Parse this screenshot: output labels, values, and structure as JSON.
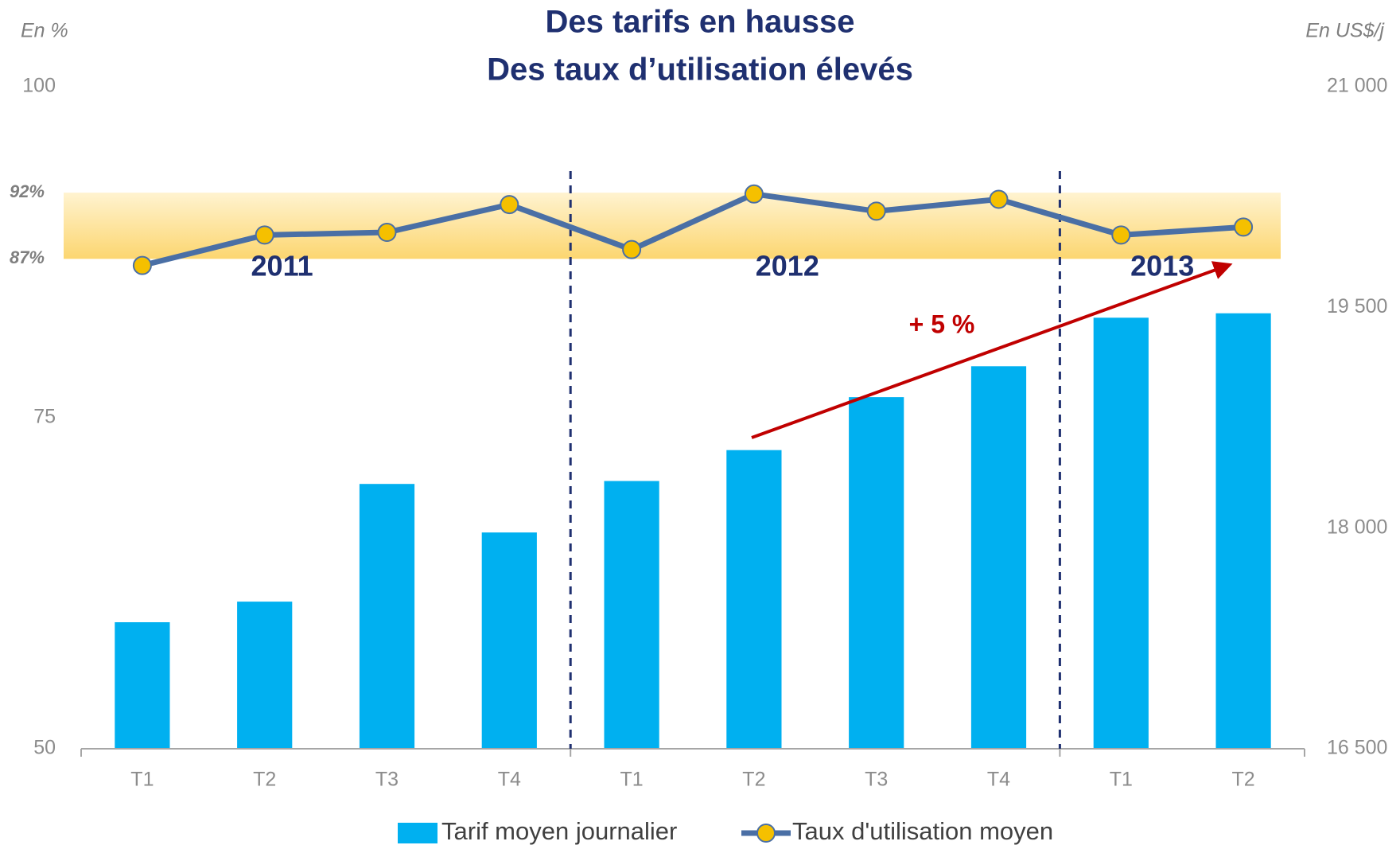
{
  "chart_data": {
    "type": "bar_line",
    "title": [
      "Des tarifs en hausse",
      "Des taux d’utilisation élevés"
    ],
    "y_axis_label": "En %",
    "y2_axis_label": "En US$/j",
    "categories": [
      "T1",
      "T2",
      "T3",
      "T4",
      "T1",
      "T2",
      "T3",
      "T4",
      "T1",
      "T2"
    ],
    "groups": [
      "2011",
      "2012",
      "2013"
    ],
    "series": [
      {
        "name": "Tarif moyen journalier",
        "type": "bar",
        "axis": "y2",
        "color": "#00b0f0",
        "values": [
          17360,
          17500,
          18300,
          17970,
          18320,
          18530,
          18890,
          19100,
          19430,
          19460
        ]
      },
      {
        "name": "Taux d'utilisation moyen",
        "type": "line",
        "axis": "y",
        "color": "#4a6fa5",
        "marker_color": "#f5c000",
        "values": [
          86.5,
          88.8,
          89.0,
          91.1,
          87.7,
          91.9,
          90.6,
          91.5,
          88.8,
          89.4
        ]
      }
    ],
    "ylim": [
      50,
      100
    ],
    "yticks": [
      50,
      75,
      100
    ],
    "y2lim": [
      16500,
      21000
    ],
    "y2ticks": [
      {
        "value": 16500,
        "label": "16 500"
      },
      {
        "value": 18000,
        "label": "18 000"
      },
      {
        "value": 19500,
        "label": "19 500"
      },
      {
        "value": 21000,
        "label": "21 000"
      }
    ],
    "band_ticks": [
      {
        "value": 92,
        "label": "92%"
      },
      {
        "value": 87,
        "label": "87%"
      }
    ],
    "annotation": "+ 5 %",
    "legend": "bottom"
  }
}
